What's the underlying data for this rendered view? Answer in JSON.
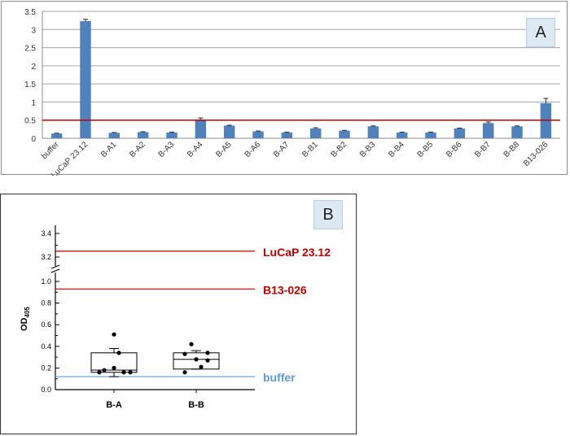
{
  "chart_data": [
    {
      "type": "bar",
      "panel_label": "A",
      "categories": [
        "buffer",
        "LuCaP 23.12",
        "B-A1",
        "B-A2",
        "B-A3",
        "B-A4",
        "B-A5",
        "B-A6",
        "B-A7",
        "B-B1",
        "B-B2",
        "B-B3",
        "B-B4",
        "B-B5",
        "B-B6",
        "B-B7",
        "B-B8",
        "B13-026"
      ],
      "values": [
        0.13,
        3.23,
        0.15,
        0.17,
        0.16,
        0.52,
        0.35,
        0.19,
        0.16,
        0.27,
        0.21,
        0.33,
        0.16,
        0.16,
        0.27,
        0.42,
        0.33,
        0.97
      ],
      "errors": [
        0.01,
        0.05,
        0.01,
        0.01,
        0.01,
        0.04,
        0.01,
        0.01,
        0.01,
        0.02,
        0.01,
        0.01,
        0.01,
        0.01,
        0.01,
        0.03,
        0.01,
        0.13
      ],
      "y_ticks": [
        "0",
        "0.5",
        "1",
        "1.5",
        "2",
        "2.5",
        "3",
        "3.5"
      ],
      "ylim": [
        0,
        3.5
      ],
      "threshold": 0.5,
      "grid": true,
      "colors": {
        "bar": "#4f81bd",
        "threshold": "#c00000",
        "grid": "#a6a6a6"
      }
    },
    {
      "type": "box",
      "panel_label": "B",
      "ylabel_main": "OD",
      "ylabel_sub": "405",
      "categories": [
        "B-A",
        "B-B"
      ],
      "points": [
        [
          0.51,
          0.34,
          0.2,
          0.18,
          0.16,
          0.16,
          0.16
        ],
        [
          0.42,
          0.34,
          0.33,
          0.28,
          0.27,
          0.21,
          0.16
        ]
      ],
      "box": [
        {
          "q1": 0.16,
          "median": 0.18,
          "q3": 0.34,
          "whisker_low": 0.12,
          "whisker_high": 0.38
        },
        {
          "q1": 0.19,
          "median": 0.28,
          "q3": 0.34,
          "whisker_low": 0.19,
          "whisker_high": 0.36
        }
      ],
      "lower_ticks": [
        "0.0",
        "0.2",
        "0.4",
        "0.6",
        "0.8",
        "1.0"
      ],
      "upper_ticks": [
        "3.2",
        "3.4"
      ],
      "reference_lines": [
        {
          "label": "LuCaP 23.12",
          "value": 3.25,
          "color": "#c00000"
        },
        {
          "label": "B13-026",
          "value": 0.93,
          "color": "#c00000"
        },
        {
          "label": "buffer",
          "value": 0.12,
          "color": "#5b9bd5"
        }
      ]
    }
  ]
}
